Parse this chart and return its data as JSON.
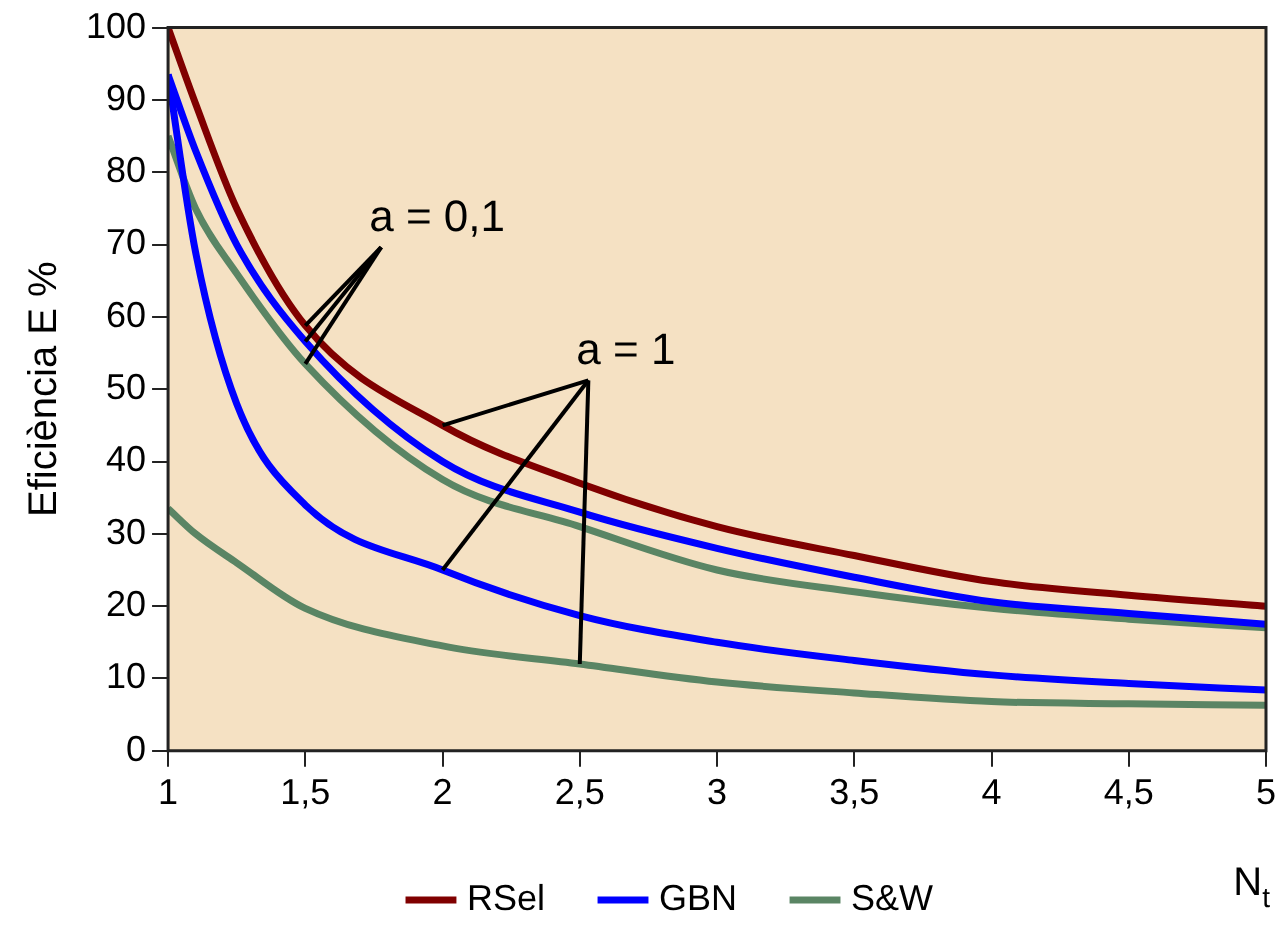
{
  "chart_data": {
    "type": "line",
    "xlabel": "N$_{t}$",
    "ylabel": "Eficiència E %",
    "x": [
      1,
      1.1,
      1.25,
      1.5,
      2,
      2.5,
      3,
      3.5,
      4,
      4.5,
      5
    ],
    "series": [
      {
        "name": "RSel",
        "color": "#800000",
        "values": [
          100,
          89.5,
          75,
          58.8,
          45,
          37,
          31,
          27,
          23.4,
          21.5,
          20
        ]
      },
      {
        "name": "GBN",
        "color": "#0000ff",
        "values": [
          93.5,
          83,
          70,
          56.6,
          40,
          33,
          28,
          24,
          20.6,
          19,
          17.5
        ]
      },
      {
        "color": "#0000ff",
        "values": [
          93.5,
          69,
          48,
          34,
          25,
          18.7,
          15,
          12.5,
          10.5,
          9.3,
          8.4
        ]
      },
      {
        "name": "S&W",
        "color": "#5a8564",
        "values": [
          85,
          75,
          66,
          53.5,
          37.5,
          31,
          25,
          22,
          19.7,
          18.2,
          17
        ]
      },
      {
        "color": "#5a8564",
        "values": [
          33.5,
          30,
          26,
          19.7,
          14.5,
          12,
          9.5,
          8,
          6.8,
          6.5,
          6.3
        ]
      }
    ],
    "annotations": [
      {
        "text": "a = 0,1",
        "x": 1.5,
        "y": 58.8
      },
      {
        "text": "a = 1",
        "x": 2,
        "y": 45
      }
    ],
    "xlim": [
      1,
      5
    ],
    "xticks": [
      1,
      {
        "value": 1.5,
        "label": "1,5"
      },
      2,
      {
        "value": 2.5,
        "label": "2,5"
      },
      3,
      {
        "value": 3.5,
        "label": "3,5"
      },
      4,
      {
        "value": 4.5,
        "label": "4,5"
      },
      5
    ],
    "ylim": [
      0,
      100
    ],
    "yticks": [
      0,
      10,
      20,
      30,
      40,
      50,
      60,
      70,
      80,
      90,
      100
    ],
    "legend": "bottom",
    "marker": "none",
    "line_style": "solid"
  }
}
